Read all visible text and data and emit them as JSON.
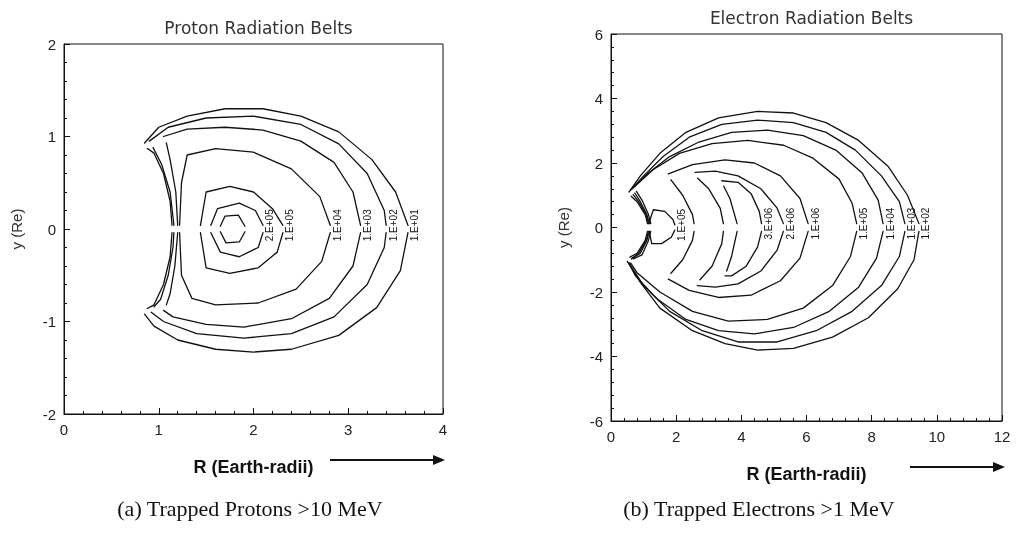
{
  "chart_data": [
    {
      "type": "line",
      "title": "Proton Radiation Belts",
      "xlabel": "R (Earth-radii)",
      "ylabel": "y (Re)",
      "annotations": [
        "(a) Trapped Protons >10 MeV"
      ],
      "xlim": [
        0,
        4
      ],
      "xticks": [
        0,
        1,
        2,
        3,
        4
      ],
      "ylim": [
        -2,
        2
      ],
      "yticks": [
        -2,
        -1,
        0,
        1,
        2
      ],
      "line_style": "solid",
      "series": [
        {
          "name": "1.E+01",
          "color": "#111111",
          "x": [
            0.85,
            1.0,
            1.3,
            1.7,
            2.1,
            2.5,
            2.9,
            3.25,
            3.5,
            3.63
          ],
          "values": [
            0.93,
            1.1,
            1.22,
            1.3,
            1.3,
            1.22,
            1.05,
            0.75,
            0.4,
            0.04
          ]
        },
        {
          "color": "#111111",
          "x": [
            0.85,
            0.95,
            1.2,
            1.6,
            2.0,
            2.4,
            2.9,
            3.3,
            3.55,
            3.63
          ],
          "values": [
            -0.92,
            -1.05,
            -1.2,
            -1.3,
            -1.33,
            -1.3,
            -1.15,
            -0.85,
            -0.45,
            -0.04
          ]
        },
        {
          "color": "#111111",
          "x": [
            0.88,
            0.95,
            1.05,
            1.12,
            1.14
          ],
          "values": [
            -0.86,
            -0.82,
            -0.6,
            -0.3,
            -0.04
          ]
        },
        {
          "color": "#111111",
          "x": [
            0.88,
            0.95,
            1.05,
            1.12,
            1.14
          ],
          "values": [
            0.87,
            0.82,
            0.6,
            0.3,
            0.04
          ]
        },
        {
          "name": "1.E+02",
          "color": "#111111",
          "x": [
            0.9,
            1.1,
            1.5,
            2.0,
            2.5,
            2.9,
            3.2,
            3.38,
            3.4
          ],
          "values": [
            0.95,
            1.1,
            1.2,
            1.22,
            1.13,
            0.92,
            0.6,
            0.2,
            0.04
          ]
        },
        {
          "color": "#111111",
          "x": [
            0.92,
            1.05,
            1.4,
            1.9,
            2.4,
            2.85,
            3.2,
            3.38,
            3.4
          ],
          "values": [
            -0.9,
            -1.0,
            -1.13,
            -1.18,
            -1.13,
            -0.95,
            -0.6,
            -0.2,
            -0.04
          ]
        },
        {
          "color": "#111111",
          "x": [
            0.95,
            1.02,
            1.1,
            1.15,
            1.16
          ],
          "values": [
            -0.84,
            -0.76,
            -0.5,
            -0.2,
            -0.04
          ]
        },
        {
          "color": "#111111",
          "x": [
            0.94,
            1.03,
            1.12,
            1.16
          ],
          "values": [
            0.88,
            0.7,
            0.4,
            0.04
          ]
        },
        {
          "name": "1.E+03",
          "color": "#111111",
          "x": [
            1.05,
            1.3,
            1.7,
            2.1,
            2.5,
            2.85,
            3.05,
            3.13
          ],
          "values": [
            1.0,
            1.08,
            1.1,
            1.07,
            0.95,
            0.72,
            0.4,
            0.04
          ]
        },
        {
          "color": "#111111",
          "x": [
            1.05,
            1.15,
            1.5,
            1.9,
            2.4,
            2.8,
            3.05,
            3.13
          ],
          "values": [
            -0.88,
            -0.95,
            -1.03,
            -1.06,
            -0.97,
            -0.75,
            -0.4,
            -0.04
          ]
        },
        {
          "color": "#111111",
          "x": [
            1.08,
            1.12,
            1.17,
            1.2
          ],
          "values": [
            -0.82,
            -0.7,
            -0.4,
            -0.04
          ]
        },
        {
          "color": "#111111",
          "x": [
            1.08,
            1.12,
            1.18,
            1.2
          ],
          "values": [
            0.93,
            0.75,
            0.4,
            0.04
          ]
        },
        {
          "name": "1.E+04",
          "color": "#111111",
          "x": [
            1.22,
            1.24,
            1.3,
            1.6,
            2.0,
            2.4,
            2.7,
            2.81
          ],
          "values": [
            0.04,
            0.5,
            0.8,
            0.87,
            0.83,
            0.65,
            0.35,
            0.04
          ]
        },
        {
          "color": "#111111",
          "x": [
            1.22,
            1.24,
            1.35,
            1.6,
            2.05,
            2.45,
            2.72,
            2.81
          ],
          "values": [
            -0.04,
            -0.5,
            -0.75,
            -0.82,
            -0.8,
            -0.65,
            -0.35,
            -0.04
          ]
        },
        {
          "name": "1.E+05",
          "color": "#111111",
          "x": [
            1.44,
            1.5,
            1.75,
            2.0,
            2.2,
            2.31
          ],
          "values": [
            0.04,
            0.4,
            0.46,
            0.4,
            0.22,
            0.04
          ]
        },
        {
          "color": "#111111",
          "x": [
            1.44,
            1.5,
            1.75,
            2.05,
            2.25,
            2.31
          ],
          "values": [
            -0.04,
            -0.42,
            -0.48,
            -0.42,
            -0.25,
            -0.04
          ]
        },
        {
          "name": "2.E+05",
          "color": "#111111",
          "x": [
            1.55,
            1.62,
            1.85,
            2.02,
            2.1
          ],
          "values": [
            0.04,
            0.22,
            0.28,
            0.2,
            0.04
          ]
        },
        {
          "color": "#111111",
          "x": [
            1.55,
            1.65,
            1.85,
            2.05,
            2.1
          ],
          "values": [
            -0.04,
            -0.25,
            -0.3,
            -0.2,
            -0.04
          ]
        },
        {
          "color": "#111111",
          "x": [
            1.65,
            1.7,
            1.84,
            1.91
          ],
          "values": [
            0.03,
            0.14,
            0.15,
            0.03
          ]
        },
        {
          "color": "#111111",
          "x": [
            1.65,
            1.71,
            1.85,
            1.91
          ],
          "values": [
            -0.03,
            -0.15,
            -0.14,
            -0.03
          ]
        }
      ]
    },
    {
      "type": "line",
      "title": "Electron Radiation Belts",
      "xlabel": "R (Earth-radii)",
      "ylabel": "y (Re)",
      "annotations": [
        "(b) Trapped Electrons >1 MeV"
      ],
      "xlim": [
        0,
        12
      ],
      "xticks": [
        0,
        2,
        4,
        6,
        8,
        10,
        12
      ],
      "ylim": [
        -6,
        6
      ],
      "yticks": [
        -6,
        -4,
        -2,
        0,
        2,
        4,
        6
      ],
      "line_style": "solid",
      "series": [
        {
          "name": "1.E+02",
          "color": "#111111",
          "x": [
            0.55,
            0.9,
            1.5,
            2.3,
            3.3,
            4.5,
            5.6,
            6.6,
            7.6,
            8.5,
            9.1,
            9.45
          ],
          "values": [
            1.1,
            1.6,
            2.3,
            2.95,
            3.4,
            3.6,
            3.55,
            3.25,
            2.7,
            1.9,
            1.0,
            0.12
          ]
        },
        {
          "color": "#111111",
          "x": [
            0.5,
            0.9,
            1.5,
            2.5,
            3.5,
            4.5,
            5.6,
            6.8,
            7.9,
            8.8,
            9.3,
            9.45
          ],
          "values": [
            -1.05,
            -1.7,
            -2.5,
            -3.2,
            -3.6,
            -3.8,
            -3.75,
            -3.4,
            -2.8,
            -1.9,
            -1.0,
            -0.12
          ]
        },
        {
          "color": "#111111",
          "x": [
            0.58,
            0.8,
            1.05,
            1.12
          ],
          "values": [
            -0.92,
            -0.8,
            -0.4,
            -0.12
          ]
        },
        {
          "color": "#111111",
          "x": [
            0.62,
            0.8,
            1.05,
            1.12
          ],
          "values": [
            0.97,
            0.8,
            0.4,
            0.12
          ]
        },
        {
          "name": "1.E+03",
          "color": "#111111",
          "x": [
            0.6,
            1.0,
            1.6,
            2.4,
            3.4,
            4.5,
            5.6,
            6.6,
            7.5,
            8.3,
            8.85,
            9.02
          ],
          "values": [
            1.15,
            1.6,
            2.2,
            2.8,
            3.2,
            3.33,
            3.25,
            2.95,
            2.4,
            1.6,
            0.8,
            0.12
          ]
        },
        {
          "color": "#111111",
          "x": [
            0.55,
            1.0,
            1.8,
            2.8,
            3.9,
            5.1,
            6.3,
            7.4,
            8.3,
            8.85,
            9.02
          ],
          "values": [
            -1.1,
            -1.8,
            -2.6,
            -3.2,
            -3.55,
            -3.55,
            -3.2,
            -2.6,
            -1.8,
            -0.9,
            -0.12
          ]
        },
        {
          "color": "#111111",
          "x": [
            0.63,
            0.85,
            1.08,
            1.15
          ],
          "values": [
            -0.97,
            -0.8,
            -0.4,
            -0.12
          ]
        },
        {
          "color": "#111111",
          "x": [
            0.68,
            0.85,
            1.08,
            1.15
          ],
          "values": [
            1.02,
            0.8,
            0.4,
            0.12
          ]
        },
        {
          "name": "1.E+04",
          "color": "#111111",
          "x": [
            0.65,
            1.1,
            1.8,
            2.7,
            3.7,
            4.8,
            5.9,
            6.9,
            7.7,
            8.2,
            8.35
          ],
          "values": [
            1.2,
            1.65,
            2.2,
            2.65,
            2.95,
            3.02,
            2.85,
            2.4,
            1.7,
            0.85,
            0.12
          ]
        },
        {
          "color": "#111111",
          "x": [
            0.55,
            0.75,
            1.4,
            2.3,
            3.3,
            4.4,
            5.6,
            6.7,
            7.6,
            8.15,
            8.35
          ],
          "values": [
            -1.1,
            -1.5,
            -2.2,
            -2.85,
            -3.2,
            -3.3,
            -3.1,
            -2.6,
            -1.85,
            -0.95,
            -0.12
          ]
        },
        {
          "color": "#111111",
          "x": [
            0.63,
            0.9,
            1.1,
            1.18
          ],
          "values": [
            -0.97,
            -0.8,
            -0.4,
            -0.12
          ]
        },
        {
          "color": "#111111",
          "x": [
            0.73,
            0.9,
            1.1,
            1.18
          ],
          "values": [
            1.07,
            0.8,
            0.4,
            0.12
          ]
        },
        {
          "name": "1.E+05",
          "color": "#111111",
          "x": [
            0.7,
            1.3,
            2.1,
            3.1,
            4.2,
            5.3,
            6.2,
            7.0,
            7.4,
            7.54
          ],
          "values": [
            1.25,
            1.8,
            2.3,
            2.6,
            2.7,
            2.55,
            2.15,
            1.5,
            0.75,
            0.12
          ]
        },
        {
          "color": "#111111",
          "x": [
            0.6,
            0.8,
            1.5,
            2.5,
            3.6,
            4.8,
            5.9,
            6.8,
            7.35,
            7.54
          ],
          "values": [
            -1.1,
            -1.4,
            -2.0,
            -2.6,
            -2.9,
            -2.85,
            -2.5,
            -1.8,
            -0.9,
            -0.12
          ]
        },
        {
          "color": "#111111",
          "x": [
            0.68,
            0.95,
            1.15,
            1.22
          ],
          "values": [
            -0.97,
            -0.85,
            -0.4,
            -0.12
          ]
        },
        {
          "color": "#111111",
          "x": [
            0.78,
            0.95,
            1.15,
            1.22
          ],
          "values": [
            1.12,
            0.85,
            0.4,
            0.12
          ]
        },
        {
          "name": "1.E+06",
          "color": "#111111",
          "x": [
            1.76,
            2.5,
            3.5,
            4.4,
            5.2,
            5.8,
            6.05
          ],
          "values": [
            1.66,
            1.95,
            2.1,
            2.0,
            1.6,
            0.9,
            0.12
          ]
        },
        {
          "color": "#111111",
          "x": [
            1.76,
            2.4,
            3.3,
            4.3,
            5.2,
            5.8,
            6.05
          ],
          "values": [
            -1.6,
            -1.95,
            -2.17,
            -2.1,
            -1.65,
            -0.95,
            -0.12
          ]
        },
        {
          "color": "#111111",
          "x": [
            1.84,
            2.2,
            2.5,
            2.55
          ],
          "values": [
            -1.42,
            -1.0,
            -0.4,
            -0.12
          ]
        },
        {
          "color": "#111111",
          "x": [
            1.84,
            2.2,
            2.5,
            2.55
          ],
          "values": [
            1.48,
            1.0,
            0.4,
            0.12
          ]
        },
        {
          "name": "2.E+06",
          "color": "#111111",
          "x": [
            2.58,
            3.2,
            3.9,
            4.6,
            5.1,
            5.29
          ],
          "values": [
            1.71,
            1.75,
            1.6,
            1.2,
            0.6,
            0.12
          ]
        },
        {
          "color": "#111111",
          "x": [
            2.65,
            3.2,
            3.9,
            4.6,
            5.1,
            5.29
          ],
          "values": [
            -1.8,
            -1.85,
            -1.75,
            -1.35,
            -0.7,
            -0.12
          ]
        },
        {
          "color": "#111111",
          "x": [
            2.73,
            3.1,
            3.4,
            3.45
          ],
          "values": [
            -1.62,
            -1.2,
            -0.5,
            -0.12
          ]
        },
        {
          "color": "#111111",
          "x": [
            2.66,
            3.0,
            3.35,
            3.45
          ],
          "values": [
            1.53,
            1.2,
            0.6,
            0.12
          ]
        },
        {
          "name": "3.E+06",
          "color": "#111111",
          "x": [
            3.4,
            3.9,
            4.3,
            4.55,
            4.62
          ],
          "values": [
            1.45,
            1.4,
            1.05,
            0.5,
            0.12
          ]
        },
        {
          "color": "#111111",
          "x": [
            3.5,
            3.7,
            4.15,
            4.5,
            4.62
          ],
          "values": [
            -1.5,
            -1.5,
            -1.2,
            -0.6,
            -0.12
          ]
        },
        {
          "color": "#111111",
          "x": [
            3.55,
            3.7,
            3.87
          ],
          "values": [
            -1.35,
            -0.9,
            -0.12
          ]
        },
        {
          "color": "#111111",
          "x": [
            3.46,
            3.65,
            3.87
          ],
          "values": [
            1.28,
            0.9,
            0.12
          ]
        },
        {
          "name": "1.E+05",
          "color": "#111111",
          "x": [
            1.18,
            1.2,
            1.3,
            1.65,
            1.9,
            1.96
          ],
          "values": [
            0.12,
            0.25,
            0.55,
            0.5,
            0.25,
            0.08
          ]
        },
        {
          "color": "#111111",
          "x": [
            1.18,
            1.2,
            1.25,
            1.55,
            1.85,
            1.96
          ],
          "values": [
            -0.12,
            -0.25,
            -0.5,
            -0.5,
            -0.3,
            -0.08
          ]
        }
      ]
    }
  ]
}
